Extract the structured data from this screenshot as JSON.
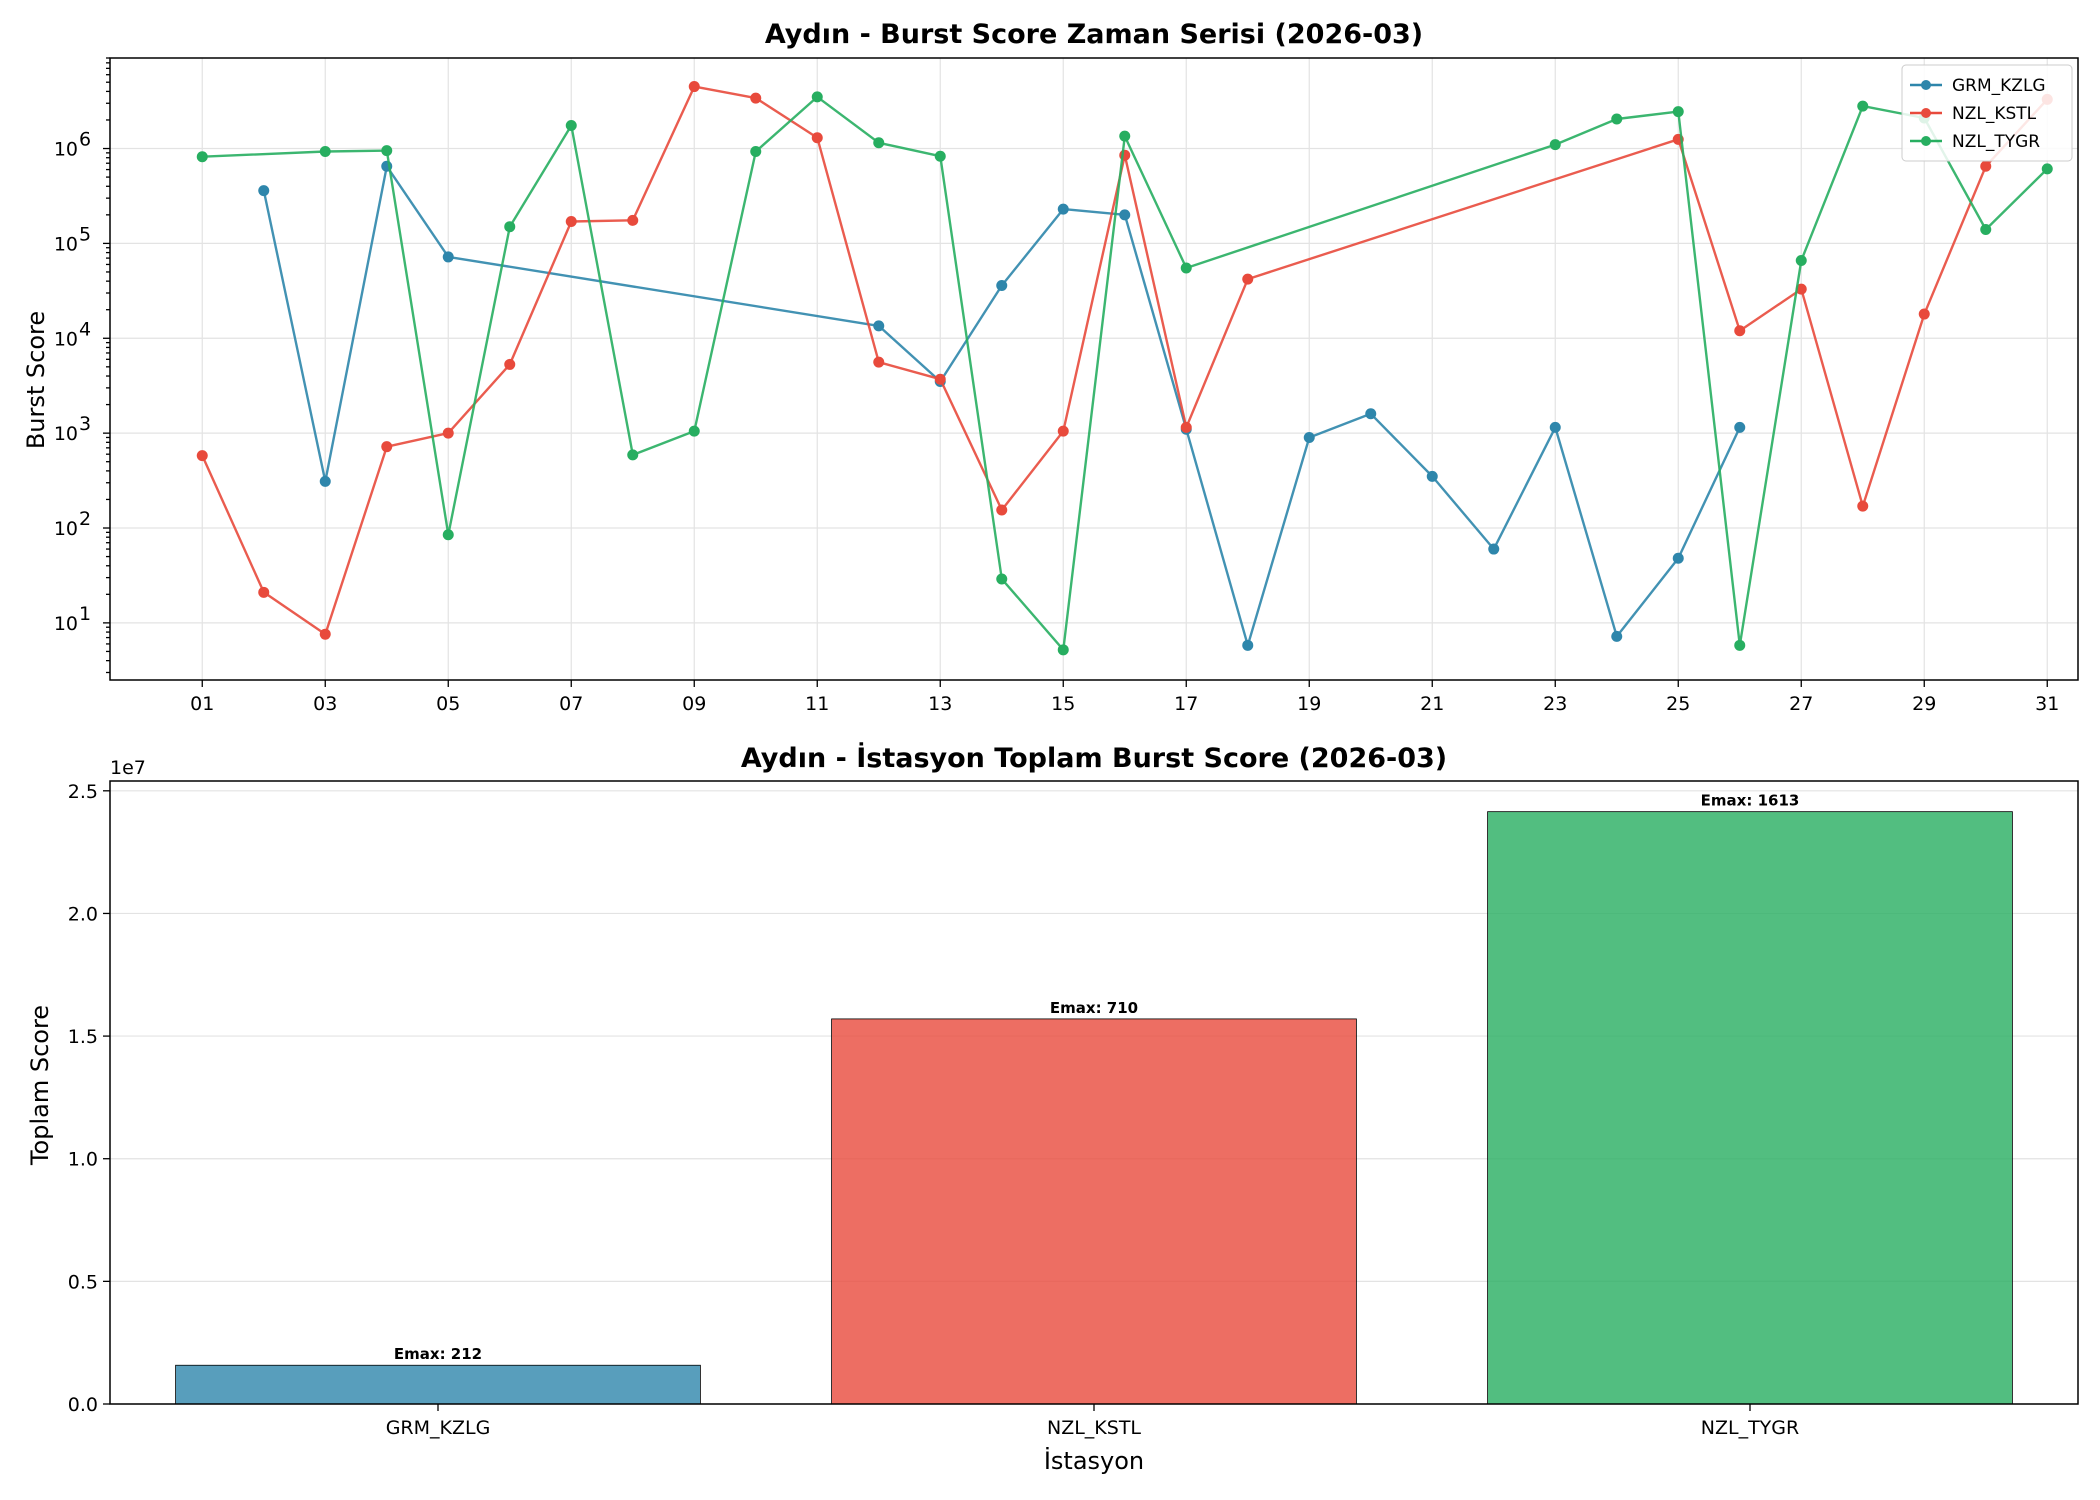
{
  "chart_data": [
    {
      "type": "line",
      "title": "Aydın - Burst Score Zaman Serisi (2026-03)",
      "xlabel": "",
      "ylabel": "Burst Score",
      "yscale": "log",
      "ylim": [
        2.5,
        9000000
      ],
      "xlim": [
        -0.5,
        31.5
      ],
      "x_tick_labels": [
        "01",
        "03",
        "05",
        "07",
        "09",
        "11",
        "13",
        "15",
        "17",
        "19",
        "21",
        "23",
        "25",
        "27",
        "29",
        "31"
      ],
      "x_tick_values": [
        1,
        3,
        5,
        7,
        9,
        11,
        13,
        15,
        17,
        19,
        21,
        23,
        25,
        27,
        29,
        31
      ],
      "y_tick_labels": [
        {
          "base": "10",
          "exp": "1",
          "value": 10
        },
        {
          "base": "10",
          "exp": "2",
          "value": 100
        },
        {
          "base": "10",
          "exp": "3",
          "value": 1000
        },
        {
          "base": "10",
          "exp": "4",
          "value": 10000
        },
        {
          "base": "10",
          "exp": "5",
          "value": 100000
        },
        {
          "base": "10",
          "exp": "6",
          "value": 1000000
        }
      ],
      "grid": true,
      "legend_position": "top-right",
      "series": [
        {
          "name": "GRM_KZLG",
          "color": "#2e86ab",
          "points": [
            [
              2,
              360000
            ],
            [
              3,
              310
            ],
            [
              4,
              650000
            ],
            [
              5,
              72000
            ],
            [
              12,
              13500
            ],
            [
              13,
              3500
            ],
            [
              14,
              36000
            ],
            [
              15,
              230000
            ],
            [
              16,
              200000
            ],
            [
              17,
              1100
            ],
            [
              18,
              5.8
            ],
            [
              19,
              900
            ],
            [
              20,
              1600
            ],
            [
              21,
              350
            ],
            [
              22,
              60
            ],
            [
              23,
              1150
            ],
            [
              24,
              7.2
            ],
            [
              25,
              48
            ],
            [
              26,
              1150
            ]
          ]
        },
        {
          "name": "NZL_KSTL",
          "color": "#e84a3c",
          "points": [
            [
              1,
              580
            ],
            [
              2,
              21
            ],
            [
              3,
              7.6
            ],
            [
              4,
              720
            ],
            [
              5,
              1000
            ],
            [
              6,
              5300
            ],
            [
              7,
              170000
            ],
            [
              8,
              175000
            ],
            [
              9,
              4500000
            ],
            [
              10,
              3400000
            ],
            [
              11,
              1300000
            ],
            [
              12,
              5600
            ],
            [
              13,
              3700
            ],
            [
              14,
              155
            ],
            [
              15,
              1050
            ],
            [
              16,
              850000
            ],
            [
              17,
              1150
            ],
            [
              18,
              42000
            ],
            [
              25,
              1250000
            ],
            [
              26,
              12000
            ],
            [
              27,
              33000
            ],
            [
              28,
              170
            ],
            [
              29,
              18000
            ],
            [
              30,
              650000
            ],
            [
              31,
              3300000
            ]
          ]
        },
        {
          "name": "NZL_TYGR",
          "color": "#27ae60",
          "points": [
            [
              1,
              820000
            ],
            [
              3,
              930000
            ],
            [
              4,
              950000
            ],
            [
              5,
              85
            ],
            [
              6,
              150000
            ],
            [
              7,
              1750000
            ],
            [
              8,
              590
            ],
            [
              9,
              1050
            ],
            [
              10,
              930000
            ],
            [
              11,
              3500000
            ],
            [
              12,
              1150000
            ],
            [
              13,
              830000
            ],
            [
              14,
              29
            ],
            [
              15,
              5.2
            ],
            [
              16,
              1350000
            ],
            [
              17,
              55000
            ],
            [
              23,
              1100000
            ],
            [
              24,
              2050000
            ],
            [
              25,
              2450000
            ],
            [
              26,
              5.8
            ],
            [
              27,
              66000
            ],
            [
              28,
              2800000
            ],
            [
              29,
              2100000
            ],
            [
              30,
              140000
            ],
            [
              31,
              610000
            ]
          ]
        }
      ]
    },
    {
      "type": "bar",
      "title": "Aydın - İstasyon Toplam Burst Score (2026-03)",
      "xlabel": "İstasyon",
      "ylabel": "Toplam Score",
      "ylim": [
        0,
        25400000
      ],
      "y_multiplier_label": "1e7",
      "y_tick_values": [
        0,
        5000000,
        10000000,
        15000000,
        20000000,
        25000000
      ],
      "y_tick_labels": [
        "0.0",
        "0.5",
        "1.0",
        "1.5",
        "2.0",
        "2.5"
      ],
      "grid": true,
      "categories": [
        "GRM_KZLG",
        "NZL_KSTL",
        "NZL_TYGR"
      ],
      "values": [
        1580000,
        15700000,
        24150000
      ],
      "bar_labels": [
        "Emax: 212",
        "Emax: 710",
        "Emax: 1613"
      ],
      "colors": [
        "#2e86ab",
        "#e84a3c",
        "#27ae60"
      ]
    }
  ]
}
